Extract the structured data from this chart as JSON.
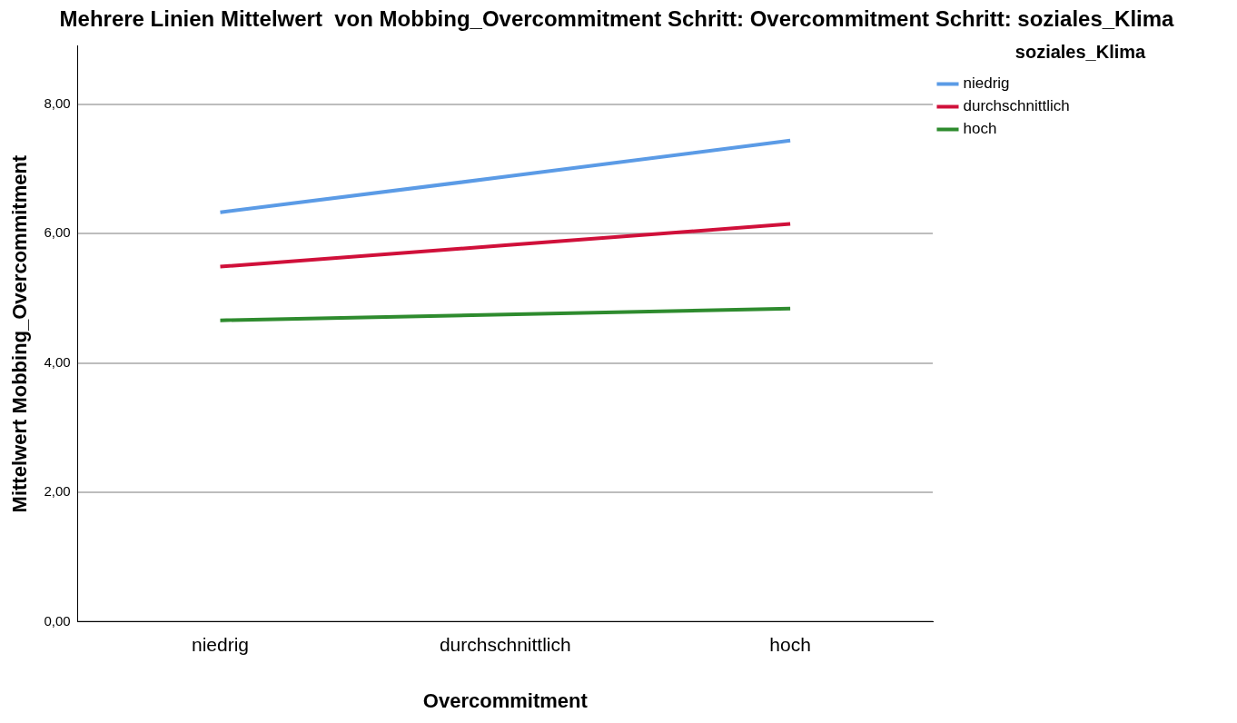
{
  "chart_data": {
    "type": "line",
    "title": "Mehrere Linien Mittelwert  von Mobbing_Overcommitment Schritt: Overcommitment Schritt: soziales_Klima",
    "xlabel": "Overcommitment",
    "ylabel": "Mittelwert Mobbing_Overcommitment",
    "legend_title": "soziales_Klima",
    "categories": [
      "niedrig",
      "durchschnittlich",
      "hoch"
    ],
    "series": [
      {
        "name": "niedrig",
        "color": "#5b9be6",
        "values": [
          6.33,
          6.88,
          7.44
        ]
      },
      {
        "name": "durchschnittlich",
        "color": "#d0103a",
        "values": [
          5.49,
          5.82,
          6.15
        ]
      },
      {
        "name": "hoch",
        "color": "#2e8b2e",
        "values": [
          4.66,
          4.75,
          4.84
        ]
      }
    ],
    "ylim": [
      0,
      8.9
    ],
    "yticks": [
      {
        "value": 0,
        "label": "0,00"
      },
      {
        "value": 2,
        "label": "2,00"
      },
      {
        "value": 4,
        "label": "4,00"
      },
      {
        "value": 6,
        "label": "6,00"
      },
      {
        "value": 8,
        "label": "8,00"
      }
    ],
    "grid": "y",
    "legend": "top right",
    "marker": "none",
    "line_style": "solid"
  }
}
